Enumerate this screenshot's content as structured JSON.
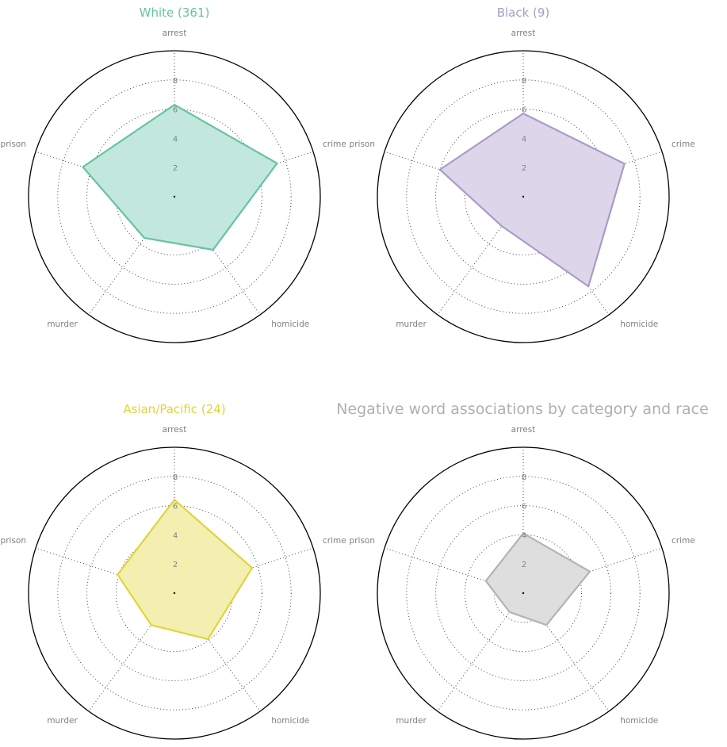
{
  "chart_data": {
    "type": "radar",
    "title": "Negative word associations by category and race",
    "axes": [
      "arrest",
      "crime",
      "homicide",
      "murder",
      "prison"
    ],
    "rlim": [
      0,
      10
    ],
    "rticks": [
      2,
      4,
      6,
      8
    ],
    "grid": true,
    "charts": [
      {
        "name": "White (361)",
        "color": "#66c2a5",
        "fill": "#c2e7dc",
        "values": [
          6.3,
          7.4,
          4.5,
          3.5,
          6.6
        ]
      },
      {
        "name": "Black (9)",
        "color": "#a99bc8",
        "fill": "#ddd6ea",
        "values": [
          5.7,
          7.3,
          7.6,
          2.5,
          6.0
        ]
      },
      {
        "name": "Asian/Pacific (24)",
        "color": "#e0d43c",
        "fill": "#f3efb1",
        "values": [
          6.4,
          5.6,
          3.9,
          2.7,
          4.1
        ]
      },
      {
        "name": "",
        "color": "#b3b3b3",
        "fill": "#dedede",
        "values": [
          4.1,
          4.8,
          2.7,
          1.6,
          2.7
        ]
      }
    ]
  }
}
